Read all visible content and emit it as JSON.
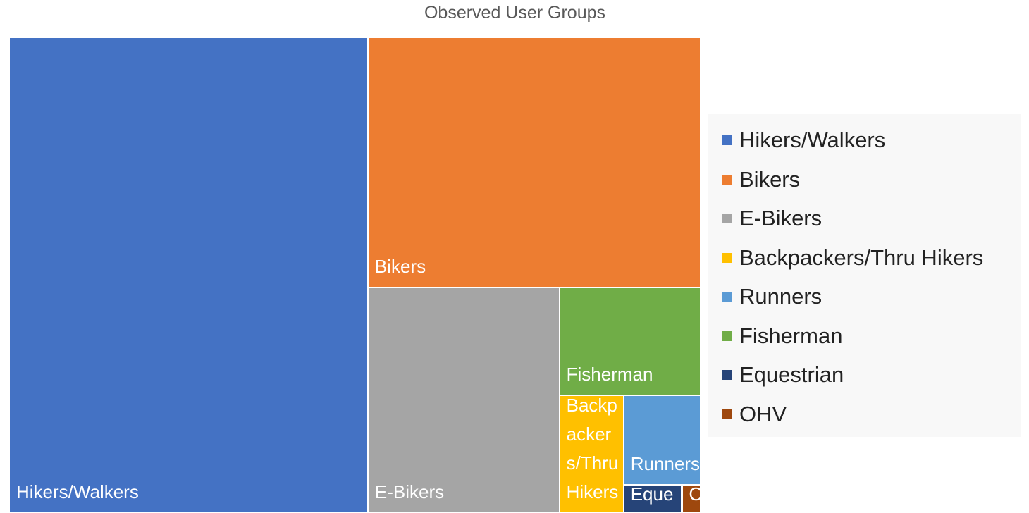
{
  "chart_data": {
    "type": "treemap",
    "title": "Observed User Groups",
    "categories": [
      "Hikers/Walkers",
      "Bikers",
      "E-Bikers",
      "Backpackers/Thru Hikers",
      "Runners",
      "Fisherman",
      "Equestrian",
      "OHV"
    ],
    "values": [
      518,
      253,
      131,
      23,
      21,
      46,
      5,
      1.6
    ],
    "colors": [
      "#4472c4",
      "#ed7d31",
      "#a5a5a5",
      "#ffc000",
      "#5b9bd5",
      "#70ad47",
      "#264478",
      "#9e480e"
    ],
    "legend": "right"
  }
}
